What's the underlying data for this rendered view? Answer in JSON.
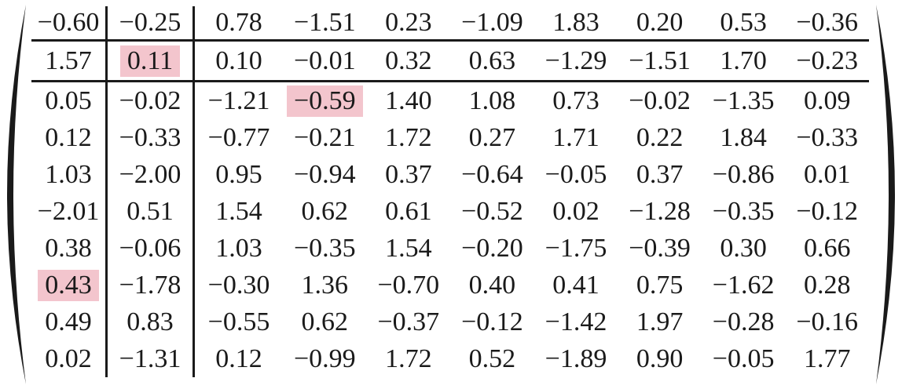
{
  "figure": {
    "type": "matrix",
    "rows": 10,
    "cols": 10,
    "values": [
      [
        "−0.60",
        "−0.25",
        "0.78",
        "−1.51",
        "0.23",
        "−1.09",
        "1.83",
        "0.20",
        "0.53",
        "−0.36"
      ],
      [
        "1.57",
        "0.11",
        "0.10",
        "−0.01",
        "0.32",
        "0.63",
        "−1.29",
        "−1.51",
        "1.70",
        "−0.23"
      ],
      [
        "0.05",
        "−0.02",
        "−1.21",
        "−0.59",
        "1.40",
        "1.08",
        "0.73",
        "−0.02",
        "−1.35",
        "0.09"
      ],
      [
        "0.12",
        "−0.33",
        "−0.77",
        "−0.21",
        "1.72",
        "0.27",
        "1.71",
        "0.22",
        "1.84",
        "−0.33"
      ],
      [
        "1.03",
        "−2.00",
        "0.95",
        "−0.94",
        "0.37",
        "−0.64",
        "−0.05",
        "0.37",
        "−0.86",
        "0.01"
      ],
      [
        "−2.01",
        "0.51",
        "1.54",
        "0.62",
        "0.61",
        "−0.52",
        "0.02",
        "−1.28",
        "−0.35",
        "−0.12"
      ],
      [
        "0.38",
        "−0.06",
        "1.03",
        "−0.35",
        "1.54",
        "−0.20",
        "−1.75",
        "−0.39",
        "0.30",
        "0.66"
      ],
      [
        "0.43",
        "−1.78",
        "−0.30",
        "1.36",
        "−0.70",
        "0.40",
        "0.41",
        "0.75",
        "−1.62",
        "0.28"
      ],
      [
        "0.49",
        "0.83",
        "−0.55",
        "0.62",
        "−0.37",
        "−0.12",
        "−1.42",
        "1.97",
        "−0.28",
        "−0.16"
      ],
      [
        "0.02",
        "−1.31",
        "0.12",
        "−0.99",
        "1.72",
        "0.52",
        "−1.89",
        "0.90",
        "−0.05",
        "1.77"
      ]
    ],
    "highlighted_cells": [
      {
        "row": 2,
        "col": 2,
        "value": "0.11"
      },
      {
        "row": 3,
        "col": 4,
        "value": "−0.59"
      },
      {
        "row": 8,
        "col": 1,
        "value": "0.43"
      }
    ],
    "vertical_rules_after_columns": [
      1,
      2
    ],
    "horizontal_rules_after_rows": [
      1,
      2
    ],
    "highlight_color": "#f3c5cd",
    "rule_color": "#1a1a1a",
    "text_color": "#1a1a1a",
    "paren_color": "#1a1a1a",
    "background_color": "#ffffff"
  }
}
